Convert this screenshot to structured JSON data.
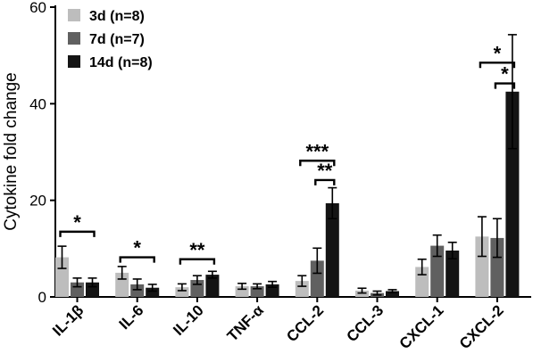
{
  "chart_data": {
    "type": "bar",
    "title": "",
    "xlabel": "",
    "ylabel": "Cytokine fold change",
    "ylim": [
      0,
      60
    ],
    "yticks": [
      0,
      20,
      40,
      60
    ],
    "grid": false,
    "legend_position": "top-left",
    "categories": [
      "IL-1β",
      "IL-6",
      "IL-10",
      "TNF-α",
      "CCL-2",
      "CCL-3",
      "CXCL-1",
      "CXCL-2"
    ],
    "series": [
      {
        "name": "3d (n=8)",
        "color": "#bdbdbd",
        "values": [
          8.2,
          5.0,
          2.0,
          2.2,
          3.3,
          1.3,
          6.2,
          12.5
        ],
        "errors": [
          2.3,
          1.3,
          0.7,
          0.6,
          1.1,
          0.5,
          1.6,
          4.1
        ]
      },
      {
        "name": "7d (n=7)",
        "color": "#606060",
        "values": [
          3.0,
          2.6,
          3.5,
          2.2,
          7.5,
          0.8,
          10.6,
          12.2
        ],
        "errors": [
          0.9,
          1.1,
          0.9,
          0.5,
          2.6,
          0.4,
          2.2,
          4.0
        ]
      },
      {
        "name": "14d (n=8)",
        "color": "#141414",
        "values": [
          3.0,
          1.9,
          4.6,
          2.6,
          19.4,
          1.2,
          9.6,
          42.5
        ],
        "errors": [
          0.9,
          0.7,
          0.7,
          0.6,
          3.2,
          0.3,
          1.7,
          11.8
        ]
      }
    ],
    "significance": [
      {
        "category": 0,
        "from": 0,
        "to": 2,
        "y": 13.5,
        "label": "*"
      },
      {
        "category": 1,
        "from": 0,
        "to": 2,
        "y": 8.2,
        "label": "*"
      },
      {
        "category": 2,
        "from": 0,
        "to": 2,
        "y": 7.8,
        "label": "**"
      },
      {
        "category": 4,
        "from": 0,
        "to": 2,
        "y": 28.2,
        "label": "***"
      },
      {
        "category": 4,
        "from": 1,
        "to": 2,
        "y": 24.2,
        "label": "**"
      },
      {
        "category": 7,
        "from": 0,
        "to": 2,
        "y": 48.5,
        "label": "*"
      },
      {
        "category": 7,
        "from": 1,
        "to": 2,
        "y": 44.2,
        "label": "*"
      }
    ]
  }
}
